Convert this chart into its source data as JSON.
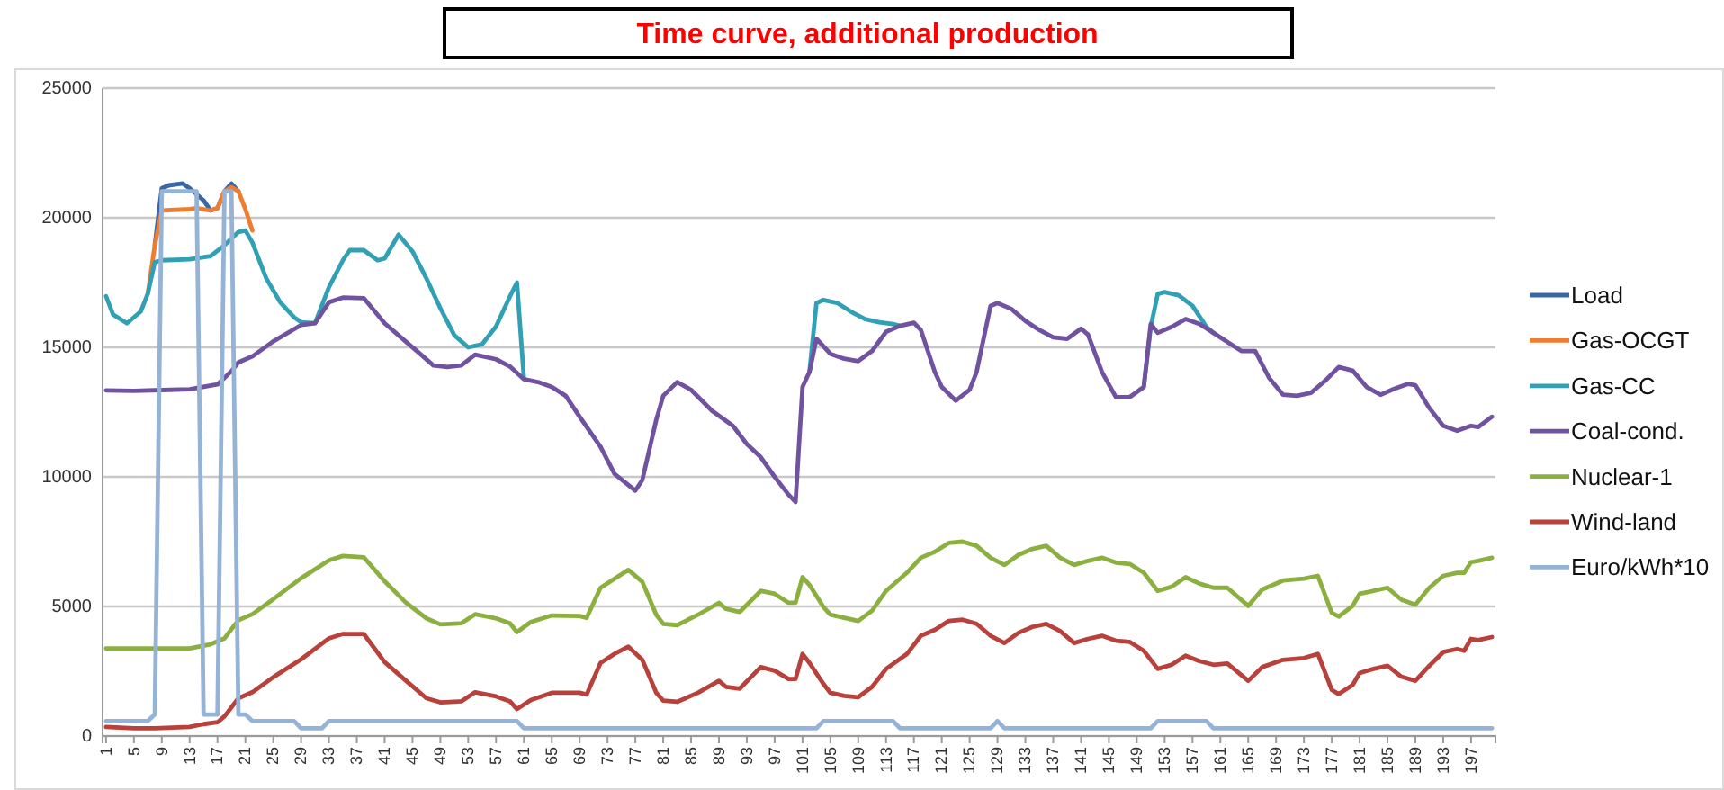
{
  "chart_data": {
    "type": "line",
    "title": "Time curve, additional production",
    "xlim": [
      0.5,
      200.5
    ],
    "xticks": [
      1,
      5,
      9,
      13,
      17,
      21,
      25,
      29,
      33,
      37,
      41,
      45,
      49,
      53,
      57,
      61,
      65,
      69,
      73,
      77,
      81,
      85,
      89,
      93,
      97,
      101,
      105,
      109,
      113,
      117,
      121,
      125,
      129,
      133,
      137,
      141,
      145,
      149,
      153,
      157,
      161,
      165,
      169,
      173,
      177,
      181,
      185,
      189,
      193,
      197
    ],
    "ylim": [
      0,
      25000
    ],
    "yticks": [
      0,
      5000,
      10000,
      15000,
      20000,
      25000
    ],
    "grid": "y",
    "legend": "right",
    "line_style": "solid",
    "marker": "none",
    "series": [
      {
        "name": "Load",
        "color": "#3a66a8",
        "x": [
          8,
          9,
          10,
          12,
          13,
          14,
          15,
          16,
          17,
          18,
          19,
          20
        ],
        "values": [
          18940,
          21140,
          21250,
          21320,
          21140,
          20900,
          20670,
          20280,
          20370,
          21020,
          21320,
          21020
        ]
      },
      {
        "name": "Gas-OCGT",
        "color": "#ed7d31",
        "x": [
          7,
          8,
          9,
          13,
          14,
          16,
          17,
          18,
          19,
          20,
          21,
          22
        ],
        "values": [
          17080,
          18940,
          20280,
          20330,
          20370,
          20280,
          20370,
          21020,
          21180,
          21020,
          20330,
          19510
        ]
      },
      {
        "name": "Gas-CC",
        "color": "#31a0b5",
        "x": [
          1,
          2,
          4,
          6,
          7,
          8,
          9,
          13,
          16,
          18,
          20,
          21,
          22,
          24,
          26,
          28,
          29,
          31,
          33,
          35,
          36,
          38,
          40,
          41,
          43,
          45,
          47,
          49,
          51,
          53,
          55,
          57,
          59,
          60,
          61,
          62,
          102,
          103,
          104,
          106,
          108,
          110,
          112,
          114,
          115,
          116,
          150,
          151,
          152,
          153,
          155,
          157,
          159,
          160
        ],
        "values": [
          16970,
          16270,
          15930,
          16390,
          17080,
          18290,
          18360,
          18400,
          18520,
          18940,
          19450,
          19510,
          19050,
          17660,
          16740,
          16160,
          15970,
          15930,
          17320,
          18360,
          18750,
          18750,
          18360,
          18430,
          19350,
          18700,
          17660,
          16510,
          15470,
          15000,
          15120,
          15810,
          16970,
          17500,
          13800,
          null,
          14050,
          16710,
          16830,
          16710,
          16370,
          16090,
          15970,
          15900,
          15830,
          null,
          13470,
          15790,
          17060,
          17130,
          17010,
          16600,
          15790,
          15560
        ]
      },
      {
        "name": "Coal-cond.",
        "color": "#7052a0",
        "x": [
          1,
          5,
          9,
          13,
          17,
          19,
          20,
          22,
          25,
          29,
          31,
          33,
          35,
          38,
          41,
          44,
          46,
          48,
          50,
          52,
          54,
          57,
          59,
          61,
          63,
          65,
          67,
          69,
          72,
          74,
          77,
          78,
          80,
          81,
          83,
          85,
          88,
          91,
          93,
          95,
          97,
          99,
          100,
          101,
          102,
          103,
          105,
          107,
          109,
          111,
          113,
          115,
          117,
          118,
          120,
          121,
          123,
          125,
          126,
          128,
          129,
          131,
          133,
          135,
          137,
          139,
          141,
          142,
          144,
          146,
          148,
          150,
          151,
          152,
          154,
          156,
          158,
          160,
          162,
          164,
          166,
          168,
          170,
          172,
          174,
          176,
          178,
          180,
          182,
          184,
          186,
          188,
          189,
          191,
          193,
          195,
          197,
          198,
          200
        ],
        "values": [
          13340,
          13320,
          13350,
          13380,
          13570,
          14080,
          14420,
          14650,
          15230,
          15860,
          15930,
          16740,
          16920,
          16900,
          15930,
          15230,
          14770,
          14300,
          14240,
          14300,
          14720,
          14540,
          14260,
          13770,
          13660,
          13470,
          13130,
          12320,
          11160,
          10120,
          9470,
          9880,
          12200,
          13130,
          13660,
          13360,
          12550,
          11970,
          11270,
          10760,
          10000,
          9310,
          9030,
          13470,
          14050,
          15330,
          14750,
          14560,
          14470,
          14860,
          15600,
          15830,
          15950,
          15670,
          14050,
          13470,
          12940,
          13360,
          14050,
          16600,
          16710,
          16480,
          16020,
          15670,
          15390,
          15330,
          15720,
          15490,
          14050,
          13080,
          13080,
          13470,
          15900,
          15560,
          15790,
          16090,
          15900,
          15560,
          15210,
          14860,
          14860,
          13820,
          13170,
          13130,
          13240,
          13700,
          14240,
          14100,
          13470,
          13170,
          13400,
          13590,
          13540,
          12660,
          11970,
          11780,
          11970,
          11920,
          12320
        ]
      },
      {
        "name": "Nuclear-1",
        "color": "#8cb040",
        "x": [
          1,
          13,
          16,
          18,
          20,
          22,
          25,
          29,
          33,
          35,
          38,
          41,
          44,
          47,
          49,
          52,
          54,
          57,
          59,
          60,
          62,
          65,
          69,
          70,
          72,
          74,
          76,
          78,
          80,
          81,
          83,
          86,
          89,
          90,
          92,
          95,
          97,
          99,
          100,
          101,
          102,
          104,
          105,
          107,
          109,
          111,
          113,
          116,
          118,
          120,
          122,
          124,
          126,
          128,
          130,
          132,
          134,
          136,
          138,
          140,
          142,
          144,
          146,
          148,
          150,
          152,
          154,
          156,
          158,
          160,
          162,
          165,
          167,
          170,
          173,
          175,
          177,
          178,
          180,
          181,
          183,
          185,
          187,
          189,
          191,
          193,
          195,
          196,
          197,
          198,
          200
        ],
        "values": [
          3380,
          3380,
          3540,
          3770,
          4470,
          4700,
          5280,
          6090,
          6780,
          6950,
          6900,
          5970,
          5160,
          4540,
          4310,
          4350,
          4700,
          4540,
          4350,
          4010,
          4400,
          4650,
          4630,
          4560,
          5720,
          6070,
          6410,
          5950,
          4680,
          4330,
          4280,
          4680,
          5140,
          4910,
          4790,
          5600,
          5490,
          5140,
          5140,
          6130,
          5830,
          4980,
          4680,
          4560,
          4440,
          4840,
          5600,
          6300,
          6880,
          7110,
          7450,
          7500,
          7340,
          6880,
          6600,
          6990,
          7220,
          7340,
          6880,
          6600,
          6760,
          6880,
          6690,
          6640,
          6300,
          5600,
          5760,
          6130,
          5880,
          5720,
          5720,
          5020,
          5650,
          6000,
          6070,
          6180,
          4750,
          4610,
          5020,
          5490,
          5600,
          5720,
          5260,
          5070,
          5720,
          6180,
          6300,
          6300,
          6710,
          6760,
          6880
        ]
      },
      {
        "name": "Wind-land",
        "color": "#b8413c",
        "x": [
          1,
          5,
          8,
          13,
          15,
          17,
          18,
          20,
          22,
          25,
          29,
          33,
          35,
          38,
          41,
          44,
          47,
          49,
          52,
          54,
          57,
          59,
          60,
          62,
          65,
          69,
          70,
          72,
          74,
          76,
          78,
          80,
          81,
          83,
          86,
          89,
          90,
          92,
          95,
          97,
          99,
          100,
          101,
          102,
          104,
          105,
          107,
          109,
          111,
          113,
          116,
          118,
          120,
          122,
          124,
          126,
          128,
          130,
          132,
          134,
          136,
          138,
          140,
          142,
          144,
          146,
          148,
          150,
          152,
          154,
          156,
          158,
          160,
          162,
          165,
          167,
          170,
          173,
          175,
          177,
          178,
          180,
          181,
          183,
          185,
          187,
          189,
          191,
          193,
          195,
          196,
          197,
          198,
          200
        ],
        "values": [
          350,
          300,
          300,
          350,
          460,
          530,
          760,
          1460,
          1690,
          2270,
          2960,
          3770,
          3940,
          3940,
          2850,
          2150,
          1460,
          1300,
          1340,
          1690,
          1530,
          1340,
          1040,
          1390,
          1670,
          1670,
          1600,
          2820,
          3170,
          3450,
          2940,
          1670,
          1370,
          1320,
          1670,
          2130,
          1900,
          1830,
          2660,
          2520,
          2200,
          2200,
          3170,
          2820,
          2010,
          1670,
          1550,
          1500,
          1900,
          2590,
          3170,
          3870,
          4100,
          4440,
          4490,
          4330,
          3870,
          3590,
          3980,
          4210,
          4330,
          4050,
          3590,
          3750,
          3870,
          3680,
          3630,
          3290,
          2590,
          2750,
          3100,
          2890,
          2750,
          2800,
          2130,
          2660,
          2940,
          3010,
          3170,
          1780,
          1620,
          1970,
          2430,
          2590,
          2710,
          2290,
          2130,
          2710,
          3240,
          3360,
          3290,
          3750,
          3700,
          3820
        ]
      },
      {
        "name": "Euro/kWh*10",
        "color": "#95b3d7",
        "x": [
          1,
          7,
          8,
          9,
          14,
          15,
          17,
          18,
          19,
          20,
          21,
          22,
          28,
          29,
          32,
          33,
          60,
          61,
          103,
          104,
          114,
          115,
          128,
          129,
          130,
          151,
          152,
          159,
          160,
          200
        ],
        "values": [
          580,
          580,
          830,
          21020,
          21020,
          830,
          830,
          21020,
          21020,
          830,
          830,
          580,
          580,
          300,
          300,
          580,
          580,
          300,
          300,
          580,
          580,
          300,
          300,
          580,
          300,
          300,
          580,
          580,
          300,
          300
        ]
      }
    ]
  }
}
